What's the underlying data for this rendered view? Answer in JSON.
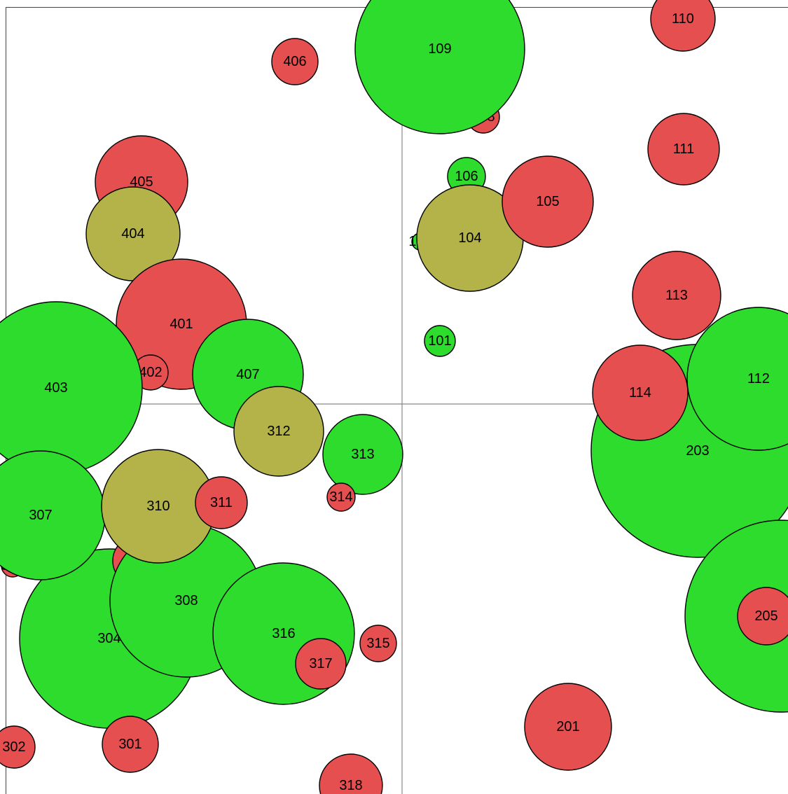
{
  "colors": {
    "red": "#e64f4f",
    "green": "#2edc2e",
    "olive": "#b3b34a",
    "stroke": "#000000",
    "background": "#ffffff",
    "divider": "#888888"
  },
  "chart_data": {
    "type": "bubble",
    "title": "",
    "xlabel": "",
    "ylabel": "",
    "grid": false,
    "legend": "none",
    "quadrant_dividers": true,
    "bubbles": [
      {
        "id": "406",
        "x": 421,
        "y": 88,
        "r": 33,
        "color": "red"
      },
      {
        "id": "110",
        "x": 975,
        "y": 27,
        "r": 46,
        "color": "red"
      },
      {
        "id": "108",
        "x": 690,
        "y": 167,
        "r": 23,
        "color": "red"
      },
      {
        "id": "109",
        "x": 628,
        "y": 70,
        "r": 121,
        "color": "green"
      },
      {
        "id": "111",
        "x": 976,
        "y": 213,
        "r": 51,
        "color": "red"
      },
      {
        "id": "106",
        "x": 666,
        "y": 252,
        "r": 27,
        "color": "green"
      },
      {
        "id": "405",
        "x": 202,
        "y": 260,
        "r": 66,
        "color": "red"
      },
      {
        "id": "102",
        "x": 600,
        "y": 345,
        "r": 12,
        "color": "green"
      },
      {
        "id": "104",
        "x": 671,
        "y": 340,
        "r": 76,
        "color": "olive"
      },
      {
        "id": "105",
        "x": 782,
        "y": 288,
        "r": 65,
        "color": "red"
      },
      {
        "id": "404",
        "x": 190,
        "y": 334,
        "r": 67,
        "color": "olive"
      },
      {
        "id": "113",
        "x": 966,
        "y": 422,
        "r": 63,
        "color": "red"
      },
      {
        "id": "101",
        "x": 628,
        "y": 487,
        "r": 22,
        "color": "green"
      },
      {
        "id": "401",
        "x": 259,
        "y": 463,
        "r": 93,
        "color": "red"
      },
      {
        "id": "402",
        "x": 215,
        "y": 532,
        "r": 25,
        "color": "red"
      },
      {
        "id": "403",
        "x": 80,
        "y": 554,
        "r": 123,
        "color": "green"
      },
      {
        "id": "407",
        "x": 354,
        "y": 535,
        "r": 79,
        "color": "green"
      },
      {
        "id": "203",
        "x": 996,
        "y": 644,
        "r": 152,
        "color": "green"
      },
      {
        "id": "112",
        "x": 1083,
        "y": 541,
        "r": 102,
        "color": "green"
      },
      {
        "id": "114",
        "x": 914,
        "y": 561,
        "r": 68,
        "color": "red"
      },
      {
        "id": "312",
        "x": 398,
        "y": 616,
        "r": 64,
        "color": "olive"
      },
      {
        "id": "313",
        "x": 518,
        "y": 649,
        "r": 57,
        "color": "green"
      },
      {
        "id": "314",
        "x": 487,
        "y": 710,
        "r": 20,
        "color": "red"
      },
      {
        "id": "306",
        "x": 18,
        "y": 808,
        "r": 16,
        "color": "red"
      },
      {
        "id": "304",
        "x": 156,
        "y": 912,
        "r": 128,
        "color": "green"
      },
      {
        "id": "305",
        "x": 196,
        "y": 801,
        "r": 35,
        "color": "red"
      },
      {
        "id": "308",
        "x": 266,
        "y": 858,
        "r": 109,
        "color": "green"
      },
      {
        "id": "307",
        "x": 58,
        "y": 736,
        "r": 92,
        "color": "green"
      },
      {
        "id": "310",
        "x": 226,
        "y": 723,
        "r": 81,
        "color": "olive"
      },
      {
        "id": "311",
        "x": 316,
        "y": 718,
        "r": 37,
        "color": "red"
      },
      {
        "id": "316",
        "x": 405,
        "y": 905,
        "r": 101,
        "color": "green"
      },
      {
        "id": "317",
        "x": 458,
        "y": 948,
        "r": 36,
        "color": "red"
      },
      {
        "id": "315",
        "x": 540,
        "y": 919,
        "r": 26,
        "color": "red"
      },
      {
        "id": "205",
        "x": 1115,
        "y": 880,
        "r": 137,
        "color": "green"
      },
      {
        "id": "205b",
        "label": "205",
        "x": 1094,
        "y": 880,
        "r": 41,
        "color": "red"
      },
      {
        "id": "201",
        "x": 811,
        "y": 1038,
        "r": 62,
        "color": "red"
      },
      {
        "id": "301",
        "x": 186,
        "y": 1063,
        "r": 40,
        "color": "red"
      },
      {
        "id": "302",
        "x": 20,
        "y": 1067,
        "r": 30,
        "color": "red"
      },
      {
        "id": "318",
        "x": 501,
        "y": 1122,
        "r": 45,
        "color": "red"
      }
    ],
    "x_range": [
      0,
      1125
    ],
    "y_range": [
      0,
      1134
    ],
    "divider_x": 574,
    "divider_y": 577
  }
}
